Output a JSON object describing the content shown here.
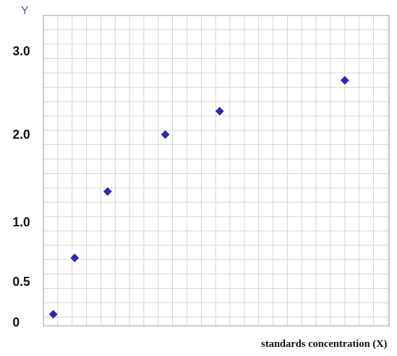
{
  "chart_data": {
    "type": "scatter",
    "title": "",
    "xlabel": "standards concentration (X)",
    "ylabel": "Y",
    "xlim": [
      0,
      21
    ],
    "ylim": [
      -0.05,
      3.5
    ],
    "y_ticks": [
      {
        "value": 0,
        "label": "0"
      },
      {
        "value": 0.5,
        "label": "0.5"
      },
      {
        "value": 1.0,
        "label": "1.0"
      },
      {
        "value": 2.0,
        "label": "2.0"
      },
      {
        "value": 3.0,
        "label": "3.0"
      }
    ],
    "grid": true,
    "marker_color": "#2b2bbf",
    "marker_shape": "diamond",
    "points": [
      {
        "x": 0.6,
        "y": 0.1
      },
      {
        "x": 1.9,
        "y": 0.7
      },
      {
        "x": 3.9,
        "y": 1.35
      },
      {
        "x": 7.4,
        "y": 2.0
      },
      {
        "x": 10.7,
        "y": 2.28
      },
      {
        "x": 18.3,
        "y": 2.65
      }
    ]
  }
}
